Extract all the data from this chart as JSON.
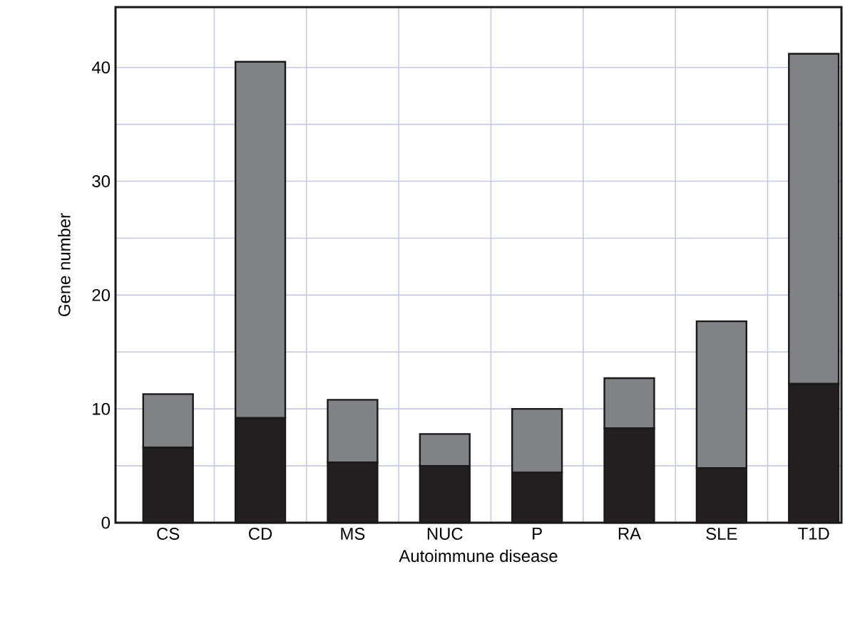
{
  "chart_data": {
    "type": "bar",
    "stacked": true,
    "xlabel": "Autoimmune disease",
    "ylabel": "Gene number",
    "categories": [
      "CS",
      "CD",
      "MS",
      "NUC",
      "P",
      "RA",
      "SLE",
      "T1D"
    ],
    "series": [
      {
        "color": "#231f20",
        "values": [
          6.6,
          9.2,
          5.3,
          5.0,
          4.4,
          8.3,
          4.8,
          12.2
        ]
      },
      {
        "color": "#808285",
        "values": [
          4.7,
          31.3,
          5.5,
          2.8,
          5.6,
          4.4,
          12.9,
          29.0
        ]
      }
    ],
    "ylim": [
      0,
      45.3
    ],
    "yticks": [
      0,
      {
        "value": 5,
        "label": null
      },
      10,
      {
        "value": 15,
        "label": null
      },
      20,
      {
        "value": 25,
        "label": null
      },
      30,
      {
        "value": 35,
        "label": null
      },
      40
    ],
    "grid": true
  }
}
